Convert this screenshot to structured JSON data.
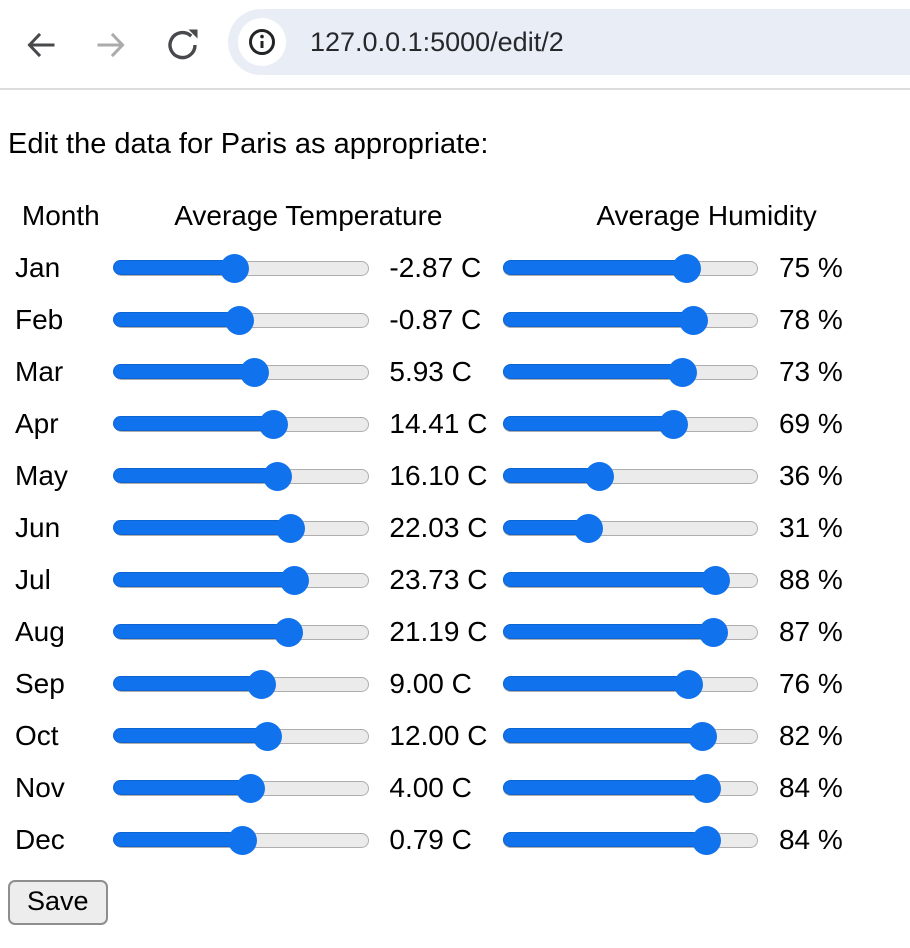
{
  "browser": {
    "url": "127.0.0.1:5000/edit/2"
  },
  "page": {
    "heading": "Edit the data for Paris as appropriate:",
    "save_label": "Save"
  },
  "table": {
    "headers": {
      "month": "Month",
      "temperature": "Average Temperature",
      "humidity": "Average Humidity"
    },
    "temp_slider_range": {
      "min": -50,
      "max": 50
    },
    "humidity_slider_range": {
      "min": 0,
      "max": 100
    },
    "rows": [
      {
        "month": "Jan",
        "temp": -2.87,
        "temp_label": "-2.87 C",
        "humidity": 75,
        "humidity_label": "75 %"
      },
      {
        "month": "Feb",
        "temp": -0.87,
        "temp_label": "-0.87 C",
        "humidity": 78,
        "humidity_label": "78 %"
      },
      {
        "month": "Mar",
        "temp": 5.93,
        "temp_label": "5.93 C",
        "humidity": 73,
        "humidity_label": "73 %"
      },
      {
        "month": "Apr",
        "temp": 14.41,
        "temp_label": "14.41 C",
        "humidity": 69,
        "humidity_label": "69 %"
      },
      {
        "month": "May",
        "temp": 16.1,
        "temp_label": "16.10 C",
        "humidity": 36,
        "humidity_label": "36 %"
      },
      {
        "month": "Jun",
        "temp": 22.03,
        "temp_label": "22.03 C",
        "humidity": 31,
        "humidity_label": "31 %"
      },
      {
        "month": "Jul",
        "temp": 23.73,
        "temp_label": "23.73 C",
        "humidity": 88,
        "humidity_label": "88 %"
      },
      {
        "month": "Aug",
        "temp": 21.19,
        "temp_label": "21.19 C",
        "humidity": 87,
        "humidity_label": "87 %"
      },
      {
        "month": "Sep",
        "temp": 9.0,
        "temp_label": "9.00 C",
        "humidity": 76,
        "humidity_label": "76 %"
      },
      {
        "month": "Oct",
        "temp": 12.0,
        "temp_label": "12.00 C",
        "humidity": 82,
        "humidity_label": "82 %"
      },
      {
        "month": "Nov",
        "temp": 4.0,
        "temp_label": "4.00 C",
        "humidity": 84,
        "humidity_label": "84 %"
      },
      {
        "month": "Dec",
        "temp": 0.79,
        "temp_label": "0.79 C",
        "humidity": 84,
        "humidity_label": "84 %"
      }
    ]
  },
  "colors": {
    "accent_blue": "#1172ee",
    "track_gray": "#ebebeb",
    "omnibox_bg": "#e9edf6",
    "icon_dark": "#47494c",
    "icon_disabled": "#ababad"
  }
}
